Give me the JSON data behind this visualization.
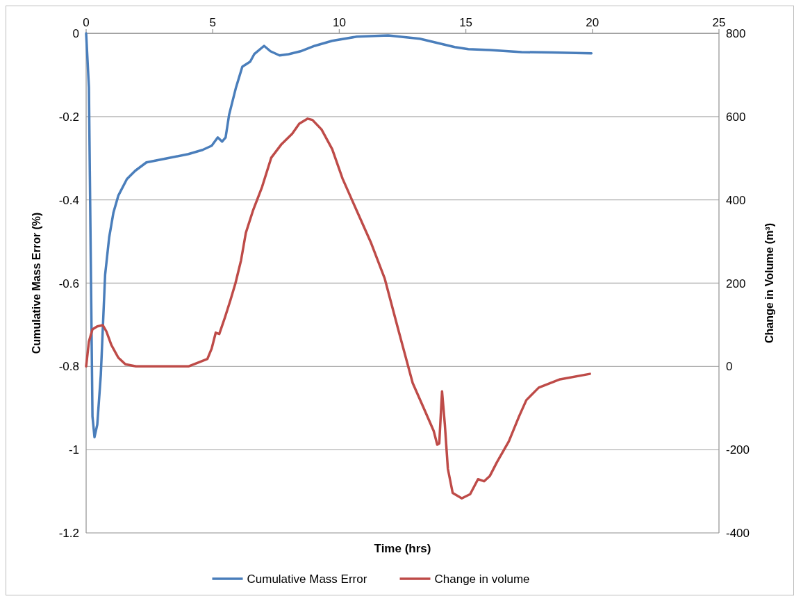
{
  "chart_data": {
    "type": "line",
    "xlabel": "Time (hrs)",
    "ylabel": "Cumulative Mass Error (%)",
    "y2label": "Change in Volume (m³)",
    "xlim": [
      0,
      25
    ],
    "xticks": [
      0,
      5,
      10,
      15,
      20,
      25
    ],
    "ylim": [
      -1.2,
      0
    ],
    "yticks": [
      0,
      -0.2,
      -0.4,
      -0.6,
      -0.8,
      -1,
      -1.2
    ],
    "y2lim": [
      -400,
      800
    ],
    "y2ticks": [
      -400,
      -200,
      0,
      200,
      400,
      600,
      800
    ],
    "grid": "y",
    "legend": "bottom",
    "marker": "none",
    "line_style": "solid",
    "series": [
      {
        "name": "Cumulative Mass Error",
        "color": "#4a7ebb",
        "x": [
          0,
          0.11,
          0.25,
          0.33,
          0.44,
          0.58,
          0.75,
          0.91,
          1.08,
          1.27,
          1.61,
          1.94,
          2.38,
          3.21,
          4.04,
          4.6,
          4.96,
          5.2,
          5.37,
          5.51,
          5.65,
          5.92,
          6.17,
          6.48,
          6.64,
          7.03,
          7.28,
          7.64,
          8.0,
          8.47,
          9.03,
          9.72,
          10.69,
          11.93,
          13.18,
          14.56,
          15.1,
          15.95,
          17.2,
          18.4,
          19.96
        ],
        "values": [
          0,
          -0.13,
          -0.92,
          -0.97,
          -0.94,
          -0.82,
          -0.58,
          -0.49,
          -0.43,
          -0.39,
          -0.35,
          -0.33,
          -0.31,
          -0.3,
          -0.29,
          -0.28,
          -0.27,
          -0.25,
          -0.26,
          -0.25,
          -0.195,
          -0.13,
          -0.08,
          -0.068,
          -0.05,
          -0.03,
          -0.043,
          -0.053,
          -0.05,
          -0.043,
          -0.03,
          -0.018,
          -0.008,
          -0.005,
          -0.013,
          -0.033,
          -0.038,
          -0.04,
          -0.045,
          -0.046,
          -0.048
        ]
      },
      {
        "name": "Change in volume",
        "color": "#be4b48",
        "axis": "y2",
        "x": [
          0,
          0.11,
          0.25,
          0.44,
          0.66,
          0.8,
          1.0,
          1.27,
          1.55,
          1.97,
          4.04,
          4.46,
          4.79,
          4.96,
          5.12,
          5.26,
          5.48,
          5.7,
          5.9,
          6.12,
          6.31,
          6.59,
          6.95,
          7.31,
          7.72,
          8.14,
          8.42,
          8.75,
          8.94,
          9.3,
          9.72,
          10.13,
          10.69,
          11.24,
          11.79,
          12.35,
          12.9,
          13.32,
          13.73,
          13.87,
          13.95,
          14.06,
          14.17,
          14.29,
          14.48,
          14.84,
          15.17,
          15.48,
          15.72,
          15.95,
          16.23,
          16.7,
          17.11,
          17.39,
          17.88,
          18.72,
          19.9
        ],
        "values": [
          0,
          60,
          89,
          96,
          99,
          84,
          51,
          21,
          5,
          0,
          0,
          10,
          18,
          43,
          81,
          78,
          117,
          159,
          200,
          255,
          321,
          374,
          431,
          501,
          534,
          559,
          583,
          595,
          592,
          569,
          522,
          451,
          374,
          299,
          212,
          84,
          -40,
          -98,
          -155,
          -188,
          -185,
          -60,
          -139,
          -246,
          -304,
          -317,
          -307,
          -271,
          -276,
          -263,
          -230,
          -180,
          -119,
          -81,
          -51,
          -31,
          -18
        ]
      }
    ]
  }
}
